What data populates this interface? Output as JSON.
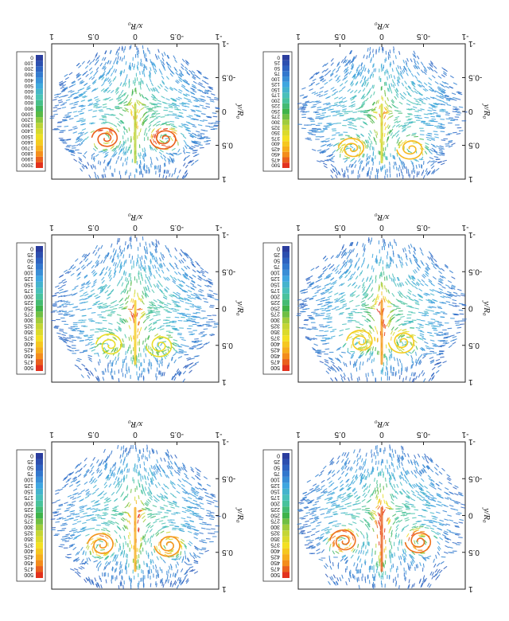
{
  "figure": {
    "orientation": "rotated 180 degrees (figure scanned upside down)",
    "panel_order": [
      "top-left",
      "top-right",
      "middle-left",
      "middle-right",
      "bottom-left",
      "bottom-right"
    ]
  },
  "chart_data": [
    {
      "type": "heatmap",
      "title": "",
      "xlabel": "x/R₀",
      "ylabel": "y/R₀",
      "xticks": [
        "-1",
        "-0.5",
        "0",
        "0.5",
        "1"
      ],
      "yticks": [
        "-1",
        "-0.5",
        "0",
        "0.5",
        "1"
      ],
      "xlim": [
        -1,
        1
      ],
      "ylim": [
        -1,
        1
      ],
      "colorbar_levels": [
        "0",
        "25",
        "50",
        "75",
        "100",
        "125",
        "150",
        "175",
        "200",
        "225",
        "250",
        "275",
        "300",
        "325",
        "350",
        "375",
        "400",
        "425",
        "450",
        "475",
        "500"
      ],
      "colormap": [
        "#2a3d9e",
        "#2f6bc8",
        "#3fa6e0",
        "#4cc6b0",
        "#3fb34a",
        "#b8d23a",
        "#f3e023",
        "#f7a21c",
        "#e2321e"
      ],
      "vortex_x": 0.45,
      "vortex_y": 0.35,
      "vortex_strength": 0.95,
      "center_intensity": 1.0,
      "corner_vortices": false
    },
    {
      "type": "heatmap",
      "title": "",
      "xlabel": "x/R₀",
      "ylabel": "y/R₀",
      "xticks": [
        "-1",
        "-0.5",
        "0",
        "0.5",
        "1"
      ],
      "yticks": [
        "-1",
        "-0.5",
        "0",
        "0.5",
        "1"
      ],
      "xlim": [
        -1,
        1
      ],
      "ylim": [
        -1,
        1
      ],
      "colorbar_levels": [
        "0",
        "25",
        "50",
        "75",
        "100",
        "125",
        "150",
        "175",
        "200",
        "225",
        "250",
        "275",
        "300",
        "325",
        "350",
        "375",
        "400",
        "425",
        "450",
        "475",
        "500"
      ],
      "colormap": [
        "#2a3d9e",
        "#2f6bc8",
        "#3fa6e0",
        "#4cc6b0",
        "#3fb34a",
        "#b8d23a",
        "#f3e023",
        "#f7a21c",
        "#e2321e"
      ],
      "vortex_x": 0.4,
      "vortex_y": 0.4,
      "vortex_strength": 0.85,
      "center_intensity": 0.85,
      "corner_vortices": true
    },
    {
      "type": "heatmap",
      "title": "",
      "xlabel": "x/R₀",
      "ylabel": "y/R₀",
      "xticks": [
        "-1",
        "-0.5",
        "0",
        "0.5",
        "1"
      ],
      "yticks": [
        "-1",
        "-0.5",
        "0",
        "0.5",
        "1"
      ],
      "xlim": [
        -1,
        1
      ],
      "ylim": [
        -1,
        1
      ],
      "colorbar_levels": [
        "0",
        "25",
        "50",
        "75",
        "100",
        "125",
        "150",
        "175",
        "200",
        "225",
        "250",
        "275",
        "300",
        "325",
        "350",
        "375",
        "400",
        "425",
        "450",
        "475",
        "500"
      ],
      "colormap": [
        "#2a3d9e",
        "#2f6bc8",
        "#3fa6e0",
        "#4cc6b0",
        "#3fb34a",
        "#b8d23a",
        "#f3e023",
        "#f7a21c",
        "#e2321e"
      ],
      "vortex_x": 0.25,
      "vortex_y": 0.45,
      "vortex_strength": 0.6,
      "center_intensity": 0.9,
      "corner_vortices": true
    },
    {
      "type": "heatmap",
      "title": "",
      "xlabel": "x/R₀",
      "ylabel": "y/R₀",
      "xticks": [
        "-1",
        "-0.5",
        "0",
        "0.5",
        "1"
      ],
      "yticks": [
        "-1",
        "-0.5",
        "0",
        "0.5",
        "1"
      ],
      "xlim": [
        -1,
        1
      ],
      "ylim": [
        -1,
        1
      ],
      "colorbar_levels": [
        "0",
        "25",
        "50",
        "75",
        "100",
        "125",
        "150",
        "175",
        "200",
        "225",
        "250",
        "275",
        "300",
        "325",
        "350",
        "375",
        "400",
        "425",
        "450",
        "475",
        "500"
      ],
      "colormap": [
        "#2a3d9e",
        "#2f6bc8",
        "#3fa6e0",
        "#4cc6b0",
        "#3fb34a",
        "#b8d23a",
        "#f3e023",
        "#f7a21c",
        "#e2321e"
      ],
      "vortex_x": 0.3,
      "vortex_y": 0.5,
      "vortex_strength": 0.45,
      "center_intensity": 0.75,
      "corner_vortices": true
    },
    {
      "type": "heatmap",
      "title": "",
      "xlabel": "x/R₀",
      "ylabel": "y/R₀",
      "xticks": [
        "-1",
        "-0.5",
        "0",
        "0.5",
        "1"
      ],
      "yticks": [
        "-1",
        "-0.5",
        "0",
        "0.5",
        "1"
      ],
      "xlim": [
        -1,
        1
      ],
      "ylim": [
        -1,
        1
      ],
      "colorbar_levels": [
        "0",
        "25",
        "50",
        "75",
        "100",
        "125",
        "150",
        "175",
        "200",
        "225",
        "250",
        "275",
        "300",
        "325",
        "350",
        "375",
        "400",
        "425",
        "450",
        "475",
        "500"
      ],
      "colormap": [
        "#2a3d9e",
        "#2f6bc8",
        "#3fa6e0",
        "#4cc6b0",
        "#3fb34a",
        "#b8d23a",
        "#f3e023",
        "#f7a21c",
        "#e2321e"
      ],
      "vortex_x": 0.35,
      "vortex_y": 0.55,
      "vortex_strength": 0.7,
      "center_intensity": 0.6,
      "corner_vortices": true
    },
    {
      "type": "heatmap",
      "title": "",
      "xlabel": "x/R₀",
      "ylabel": "y/R₀",
      "xticks": [
        "-1",
        "-0.5",
        "0",
        "0.5",
        "1"
      ],
      "yticks": [
        "-1",
        "-0.5",
        "0",
        "0.5",
        "1"
      ],
      "xlim": [
        -1,
        1
      ],
      "ylim": [
        -1,
        1
      ],
      "colorbar_levels": [
        "0",
        "100",
        "200",
        "300",
        "400",
        "500",
        "600",
        "700",
        "800",
        "900",
        "1000",
        "1200",
        "1300",
        "1400",
        "1500",
        "1600",
        "1700",
        "1800",
        "1900",
        "2000"
      ],
      "colormap": [
        "#2a3d9e",
        "#2f6bc8",
        "#3fa6e0",
        "#4cc6b0",
        "#3fb34a",
        "#b8d23a",
        "#f3e023",
        "#f7a21c",
        "#e2321e"
      ],
      "vortex_x": 0.35,
      "vortex_y": 0.4,
      "vortex_strength": 1.0,
      "center_intensity": 0.5,
      "corner_vortices": false
    }
  ]
}
